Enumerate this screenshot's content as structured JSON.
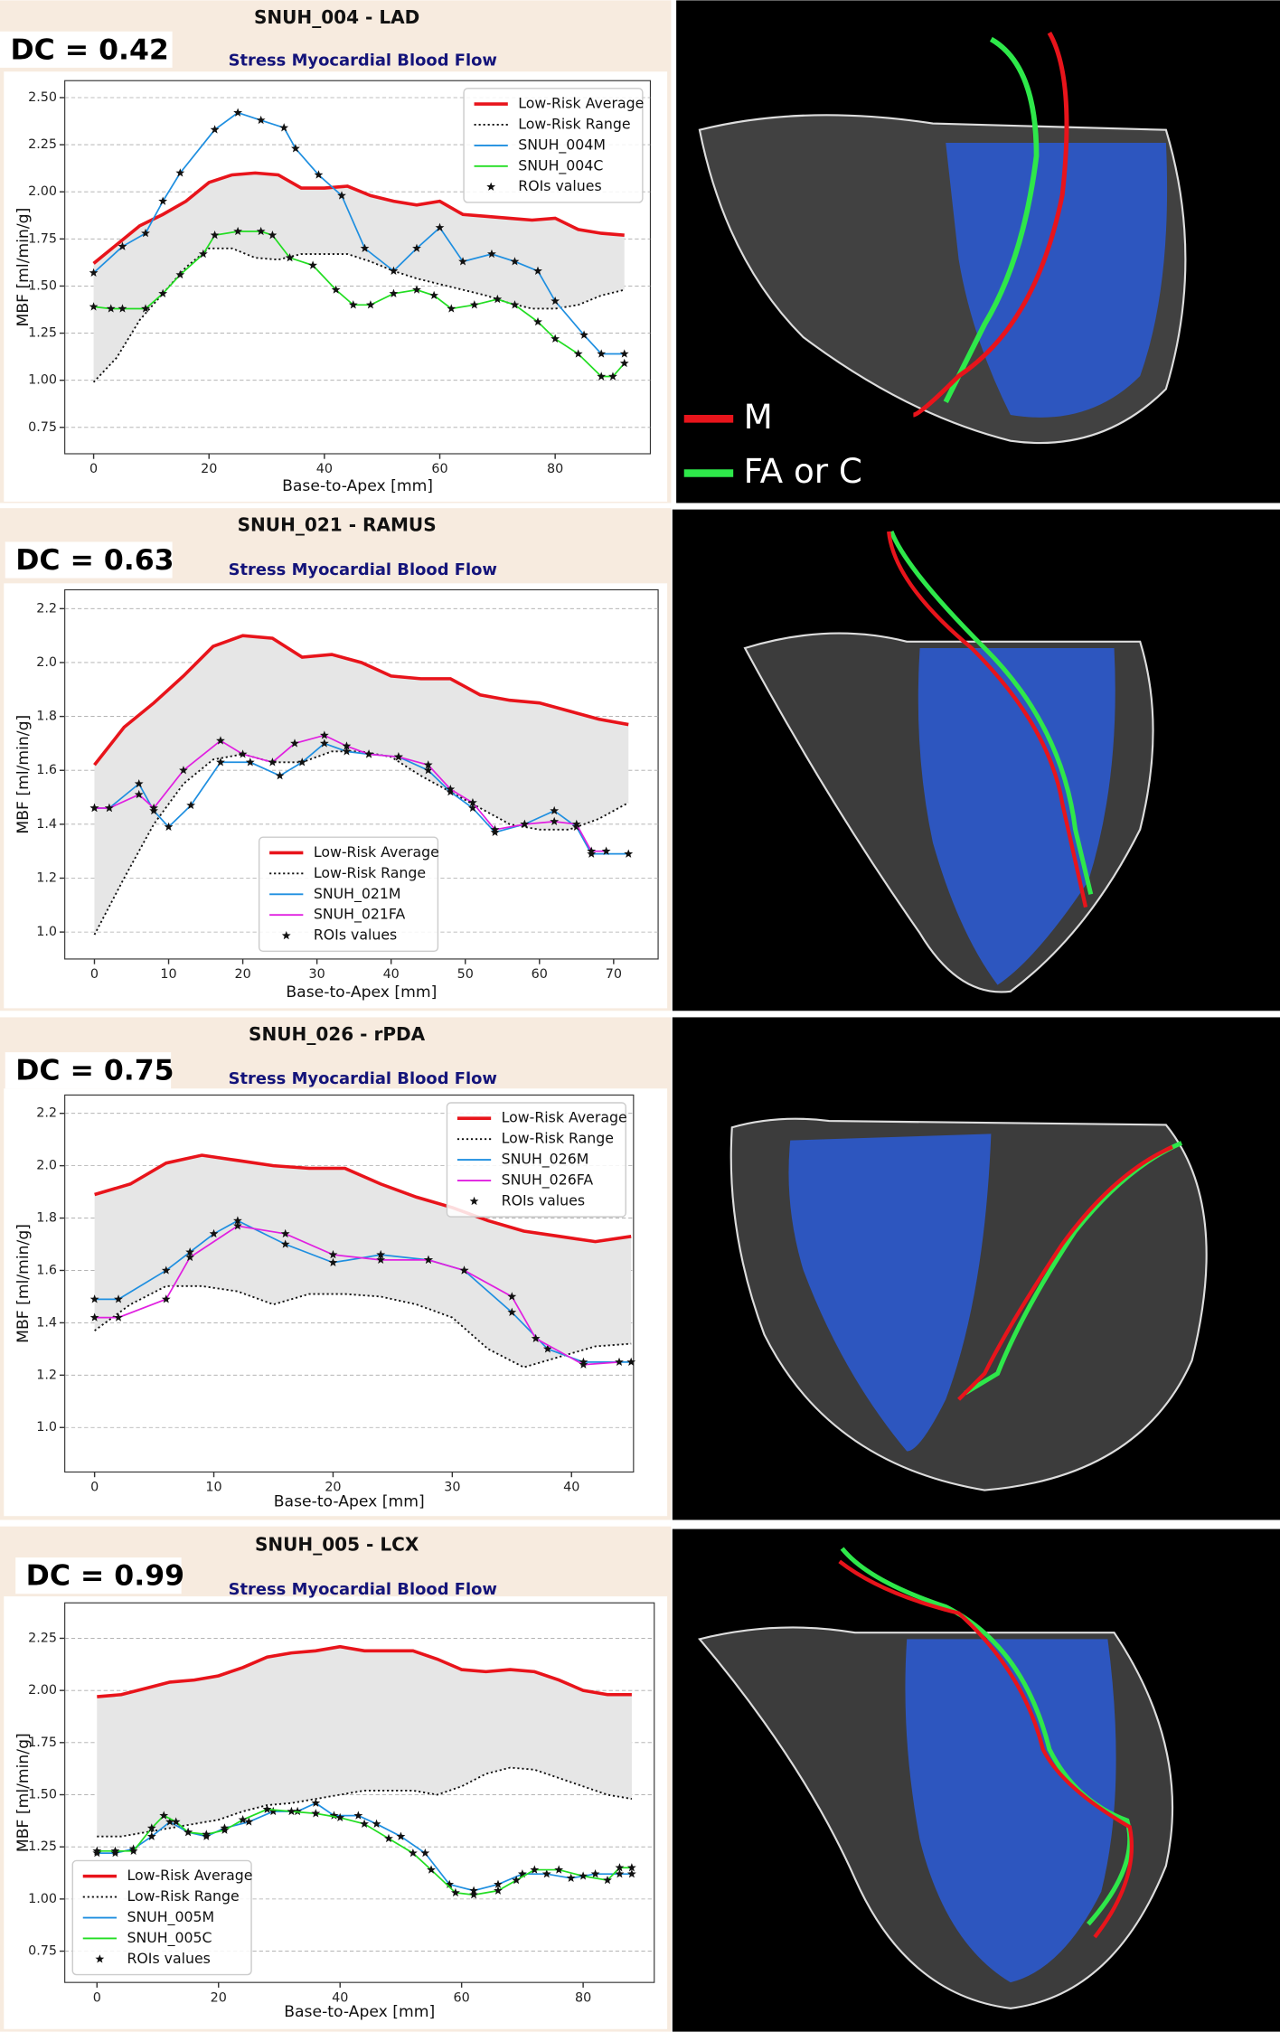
{
  "chart_data": [
    {
      "type": "line",
      "title": "SNUH_004  -  LAD",
      "dc_label": "DC = 0.42",
      "subtitle": "Stress Myocardial Blood Flow",
      "x_label": "Base-to-Apex [mm]",
      "y_label": "MBF [ml/min/g]",
      "xlim": [
        -5,
        96.5
      ],
      "ylim": [
        0.61,
        2.59
      ],
      "xticks": [
        0,
        20,
        40,
        60,
        80
      ],
      "yticks": [
        0.75,
        {
          "value": 1,
          "label": "1.00"
        },
        1.25,
        {
          "value": 1.5,
          "label": "1.50"
        },
        1.75,
        {
          "value": 2,
          "label": "2.00"
        },
        2.25,
        {
          "value": 2.5,
          "label": "2.50"
        }
      ],
      "grid": true,
      "shaded": true,
      "legend_loc": "upper right",
      "marker_label": "ROIs values",
      "series": [
        {
          "name": "Low-Risk Average",
          "color": "#e8141b",
          "style": "solid",
          "x": [
            0,
            4,
            8,
            12,
            16,
            20,
            24,
            28,
            32,
            36,
            40,
            44,
            48,
            52,
            56,
            60,
            64,
            68,
            72,
            76,
            80,
            84,
            88,
            92
          ],
          "values": [
            1.62,
            1.72,
            1.82,
            1.88,
            1.95,
            2.05,
            2.09,
            2.1,
            2.09,
            2.02,
            2.02,
            2.03,
            1.98,
            1.95,
            1.93,
            1.95,
            1.88,
            1.87,
            1.86,
            1.85,
            1.86,
            1.8,
            1.78,
            1.77
          ]
        },
        {
          "name": "Low-Risk Range",
          "color": "#111111",
          "style": "dotted",
          "x": [
            0,
            4,
            8,
            12,
            16,
            20,
            24,
            28,
            32,
            36,
            40,
            44,
            48,
            52,
            56,
            60,
            64,
            68,
            72,
            76,
            80,
            84,
            88,
            92
          ],
          "values": [
            0.99,
            1.12,
            1.32,
            1.46,
            1.6,
            1.7,
            1.7,
            1.65,
            1.64,
            1.67,
            1.67,
            1.67,
            1.63,
            1.58,
            1.54,
            1.51,
            1.48,
            1.45,
            1.41,
            1.38,
            1.38,
            1.4,
            1.45,
            1.48
          ]
        },
        {
          "name": "SNUH_004M",
          "color": "#1f8fe0",
          "style": "markers",
          "x": [
            0,
            5,
            9,
            12,
            15,
            21,
            25,
            29,
            33,
            35,
            39,
            43,
            47,
            52,
            56,
            60,
            64,
            69,
            73,
            77,
            80,
            85,
            88,
            92
          ],
          "values": [
            1.57,
            1.71,
            1.78,
            1.95,
            2.1,
            2.33,
            2.42,
            2.38,
            2.34,
            2.23,
            2.09,
            1.98,
            1.7,
            1.58,
            1.7,
            1.81,
            1.63,
            1.67,
            1.63,
            1.58,
            1.42,
            1.24,
            1.14,
            1.14
          ]
        },
        {
          "name": "SNUH_004C",
          "color": "#22dd22",
          "style": "markers",
          "x": [
            0,
            3,
            5,
            9,
            12,
            15,
            19,
            21,
            25,
            29,
            31,
            34,
            38,
            42,
            45,
            48,
            52,
            56,
            59,
            62,
            66,
            70,
            73,
            77,
            80,
            84,
            88,
            90,
            92
          ],
          "values": [
            1.39,
            1.38,
            1.38,
            1.38,
            1.46,
            1.56,
            1.67,
            1.77,
            1.79,
            1.79,
            1.77,
            1.65,
            1.61,
            1.48,
            1.4,
            1.4,
            1.46,
            1.48,
            1.45,
            1.38,
            1.4,
            1.43,
            1.4,
            1.31,
            1.22,
            1.14,
            1.02,
            1.02,
            1.09
          ]
        }
      ]
    },
    {
      "type": "line",
      "title": "SNUH_021  -  RAMUS",
      "dc_label": "DC = 0.63",
      "subtitle": "Stress Myocardial Blood Flow",
      "x_label": "Base-to-Apex [mm]",
      "y_label": "MBF [ml/min/g]",
      "xlim": [
        -4,
        76
      ],
      "ylim": [
        0.9,
        2.27
      ],
      "xticks": [
        0,
        10,
        20,
        30,
        40,
        50,
        60,
        70
      ],
      "yticks": [
        {
          "value": 1,
          "label": "1.0"
        },
        1.2,
        1.4,
        1.6,
        1.8,
        {
          "value": 2,
          "label": "2.0"
        },
        2.2
      ],
      "grid": true,
      "shaded": true,
      "legend_loc": "lower center",
      "marker_label": "ROIs values",
      "series": [
        {
          "name": "Low-Risk Average",
          "color": "#e8141b",
          "style": "solid",
          "x": [
            0,
            4,
            8,
            12,
            16,
            20,
            24,
            28,
            32,
            36,
            40,
            44,
            48,
            52,
            56,
            60,
            64,
            68,
            72
          ],
          "values": [
            1.62,
            1.76,
            1.85,
            1.95,
            2.06,
            2.1,
            2.09,
            2.02,
            2.03,
            2,
            1.95,
            1.94,
            1.94,
            1.88,
            1.86,
            1.85,
            1.82,
            1.79,
            1.77
          ]
        },
        {
          "name": "Low-Risk Range",
          "color": "#111111",
          "style": "dotted",
          "x": [
            0,
            4,
            8,
            12,
            16,
            20,
            24,
            28,
            32,
            36,
            40,
            44,
            48,
            52,
            56,
            60,
            64,
            68,
            72
          ],
          "values": [
            0.99,
            1.2,
            1.4,
            1.55,
            1.64,
            1.66,
            1.63,
            1.63,
            1.67,
            1.67,
            1.65,
            1.58,
            1.52,
            1.46,
            1.4,
            1.38,
            1.38,
            1.42,
            1.48
          ]
        },
        {
          "name": "SNUH_021M",
          "color": "#1f8fe0",
          "style": "markers",
          "x": [
            0,
            2,
            6,
            8,
            10,
            13,
            17,
            21,
            25,
            28,
            31,
            34,
            37,
            41,
            45,
            48,
            51,
            54,
            58,
            62,
            65,
            67,
            72
          ],
          "values": [
            1.46,
            1.46,
            1.55,
            1.45,
            1.39,
            1.47,
            1.63,
            1.63,
            1.58,
            1.63,
            1.7,
            1.67,
            1.66,
            1.65,
            1.6,
            1.52,
            1.46,
            1.37,
            1.4,
            1.45,
            1.39,
            1.29,
            1.29
          ]
        },
        {
          "name": "SNUH_021FA",
          "color": "#e020e0",
          "style": "markers",
          "x": [
            0,
            2,
            6,
            8,
            12,
            17,
            20,
            24,
            27,
            31,
            34,
            37,
            41,
            45,
            48,
            51,
            54,
            58,
            62,
            65,
            67,
            69
          ],
          "values": [
            1.46,
            1.46,
            1.51,
            1.46,
            1.6,
            1.71,
            1.66,
            1.63,
            1.7,
            1.73,
            1.69,
            1.66,
            1.65,
            1.62,
            1.53,
            1.48,
            1.38,
            1.4,
            1.41,
            1.4,
            1.3,
            1.3
          ]
        }
      ]
    },
    {
      "type": "line",
      "title": "SNUH_026  -  rPDA",
      "dc_label": "DC = 0.75",
      "subtitle": "Stress Myocardial Blood Flow",
      "x_label": "Base-to-Apex [mm]",
      "y_label": "MBF [ml/min/g]",
      "xlim": [
        -2.5,
        45.2
      ],
      "ylim": [
        0.83,
        2.27
      ],
      "xticks": [
        0,
        10,
        20,
        30,
        40
      ],
      "yticks": [
        {
          "value": 1,
          "label": "1.0"
        },
        1.2,
        1.4,
        1.6,
        1.8,
        {
          "value": 2,
          "label": "2.0"
        },
        2.2
      ],
      "grid": true,
      "shaded": true,
      "legend_loc": "upper right",
      "marker_label": "ROIs values",
      "series": [
        {
          "name": "Low-Risk Average",
          "color": "#e8141b",
          "style": "solid",
          "x": [
            0,
            3,
            6,
            9,
            12,
            15,
            18,
            21,
            24,
            27,
            30,
            33,
            36,
            39,
            42,
            45
          ],
          "values": [
            1.89,
            1.93,
            2.01,
            2.04,
            2.02,
            2,
            1.99,
            1.99,
            1.93,
            1.88,
            1.84,
            1.79,
            1.75,
            1.73,
            1.71,
            1.73
          ]
        },
        {
          "name": "Low-Risk Range",
          "color": "#111111",
          "style": "dotted",
          "x": [
            0,
            3,
            6,
            9,
            12,
            15,
            18,
            21,
            24,
            27,
            30,
            33,
            36,
            39,
            42,
            45
          ],
          "values": [
            1.37,
            1.47,
            1.54,
            1.54,
            1.52,
            1.47,
            1.51,
            1.51,
            1.5,
            1.47,
            1.42,
            1.3,
            1.23,
            1.27,
            1.31,
            1.32
          ]
        },
        {
          "name": "SNUH_026M",
          "color": "#1f8fe0",
          "style": "markers",
          "x": [
            0,
            2,
            6,
            8,
            10,
            12,
            16,
            20,
            24,
            28,
            31,
            35,
            38,
            41,
            45
          ],
          "values": [
            1.49,
            1.49,
            1.6,
            1.67,
            1.74,
            1.79,
            1.7,
            1.63,
            1.66,
            1.64,
            1.6,
            1.44,
            1.3,
            1.25,
            1.25
          ]
        },
        {
          "name": "SNUH_026FA",
          "color": "#e020e0",
          "style": "markers",
          "x": [
            0,
            2,
            6,
            8,
            12,
            16,
            20,
            24,
            28,
            31,
            35,
            37,
            41,
            44
          ],
          "values": [
            1.42,
            1.42,
            1.49,
            1.65,
            1.77,
            1.74,
            1.66,
            1.64,
            1.64,
            1.6,
            1.5,
            1.34,
            1.24,
            1.25
          ]
        }
      ]
    },
    {
      "type": "line",
      "title": "SNUH_005  -  LCX",
      "dc_label": "DC = 0.99",
      "subtitle": "Stress Myocardial Blood Flow",
      "x_label": "Base-to-Apex [mm]",
      "y_label": "MBF [ml/min/g]",
      "xlim": [
        -5.3,
        91.7
      ],
      "ylim": [
        0.6,
        2.42
      ],
      "xticks": [
        0,
        20,
        40,
        60,
        80
      ],
      "yticks": [
        0.75,
        {
          "value": 1,
          "label": "1.00"
        },
        1.25,
        {
          "value": 1.5,
          "label": "1.50"
        },
        1.75,
        {
          "value": 2,
          "label": "2.00"
        },
        2.25
      ],
      "grid": true,
      "shaded": true,
      "legend_loc": "lower left",
      "marker_label": "ROIs values",
      "series": [
        {
          "name": "Low-Risk Average",
          "color": "#e8141b",
          "style": "solid",
          "x": [
            0,
            4,
            8,
            12,
            16,
            20,
            24,
            28,
            32,
            36,
            40,
            44,
            48,
            52,
            56,
            60,
            64,
            68,
            72,
            76,
            80,
            84,
            88
          ],
          "values": [
            1.97,
            1.98,
            2.01,
            2.04,
            2.05,
            2.07,
            2.11,
            2.16,
            2.18,
            2.19,
            2.21,
            2.19,
            2.19,
            2.19,
            2.15,
            2.1,
            2.09,
            2.1,
            2.09,
            2.05,
            2,
            1.98,
            1.98
          ]
        },
        {
          "name": "Low-Risk Range",
          "color": "#111111",
          "style": "dotted",
          "x": [
            0,
            4,
            8,
            12,
            16,
            20,
            24,
            28,
            32,
            36,
            40,
            44,
            48,
            52,
            56,
            60,
            64,
            68,
            72,
            76,
            80,
            84,
            88
          ],
          "values": [
            1.3,
            1.3,
            1.32,
            1.34,
            1.36,
            1.38,
            1.42,
            1.45,
            1.46,
            1.48,
            1.5,
            1.52,
            1.52,
            1.52,
            1.5,
            1.54,
            1.6,
            1.63,
            1.62,
            1.58,
            1.54,
            1.5,
            1.48
          ]
        },
        {
          "name": "SNUH_005M",
          "color": "#1f8fe0",
          "style": "markers",
          "x": [
            0,
            3,
            6,
            9,
            12,
            15,
            18,
            21,
            25,
            29,
            33,
            36,
            39,
            43,
            46,
            50,
            54,
            58,
            62,
            66,
            70,
            74,
            78,
            82,
            86,
            88
          ],
          "values": [
            1.22,
            1.22,
            1.24,
            1.3,
            1.37,
            1.32,
            1.3,
            1.34,
            1.37,
            1.42,
            1.42,
            1.46,
            1.4,
            1.4,
            1.36,
            1.3,
            1.22,
            1.07,
            1.04,
            1.07,
            1.12,
            1.12,
            1.1,
            1.12,
            1.12,
            1.12
          ]
        },
        {
          "name": "SNUH_005C",
          "color": "#22dd22",
          "style": "markers",
          "x": [
            0,
            3,
            6,
            9,
            11,
            13,
            15,
            18,
            21,
            24,
            28,
            32,
            36,
            40,
            44,
            48,
            52,
            55,
            59,
            62,
            66,
            69,
            72,
            76,
            80,
            84,
            86,
            88
          ],
          "values": [
            1.23,
            1.23,
            1.23,
            1.34,
            1.4,
            1.37,
            1.32,
            1.31,
            1.33,
            1.38,
            1.43,
            1.42,
            1.41,
            1.39,
            1.36,
            1.29,
            1.22,
            1.14,
            1.03,
            1.02,
            1.04,
            1.09,
            1.14,
            1.14,
            1.11,
            1.09,
            1.15,
            1.15
          ]
        }
      ]
    }
  ],
  "image_legend": [
    {
      "label": "M",
      "color": "#e8141b"
    },
    {
      "label": "FA or C",
      "color": "#2ee84a"
    }
  ]
}
